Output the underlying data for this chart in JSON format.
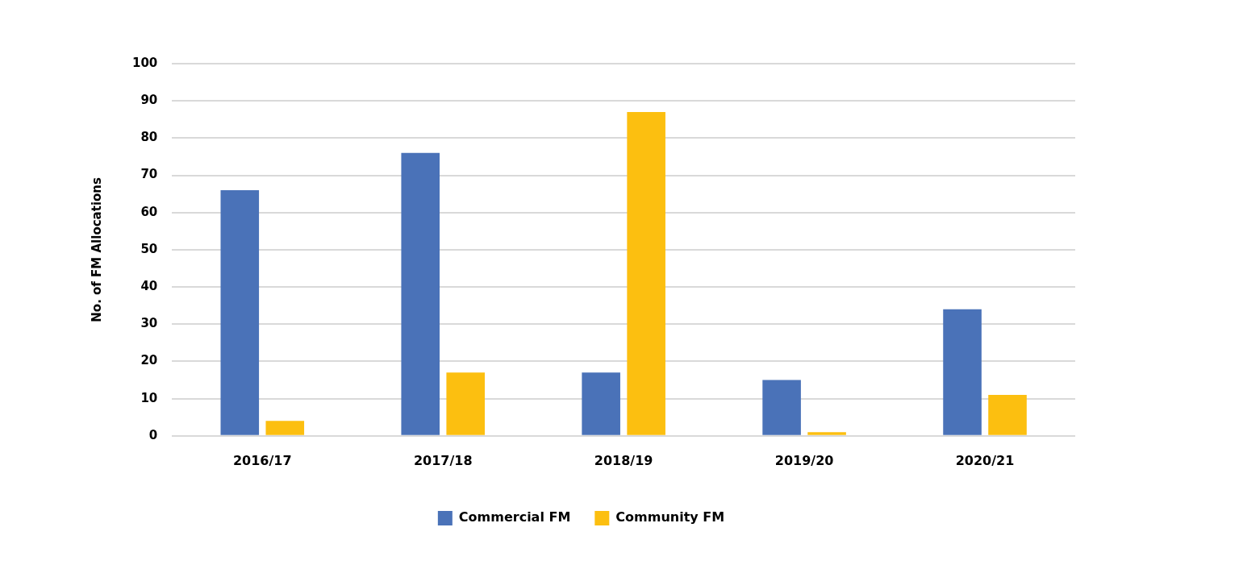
{
  "chart_data": {
    "type": "bar",
    "ylabel": "No. of FM Allocations",
    "categories": [
      "2016/17",
      "2017/18",
      "2018/19",
      "2019/20",
      "2020/21"
    ],
    "series": [
      {
        "name": "Commercial FM",
        "color": "#4a72b8",
        "values": [
          66,
          76,
          17,
          15,
          34
        ]
      },
      {
        "name": "Community FM",
        "color": "#fcbf10",
        "values": [
          4,
          17,
          87,
          1,
          11
        ]
      }
    ],
    "ylim": [
      0,
      100
    ],
    "yticks": [
      0,
      10,
      20,
      30,
      40,
      50,
      60,
      70,
      80,
      90,
      100
    ],
    "grid": "y",
    "legend": "bottom"
  }
}
